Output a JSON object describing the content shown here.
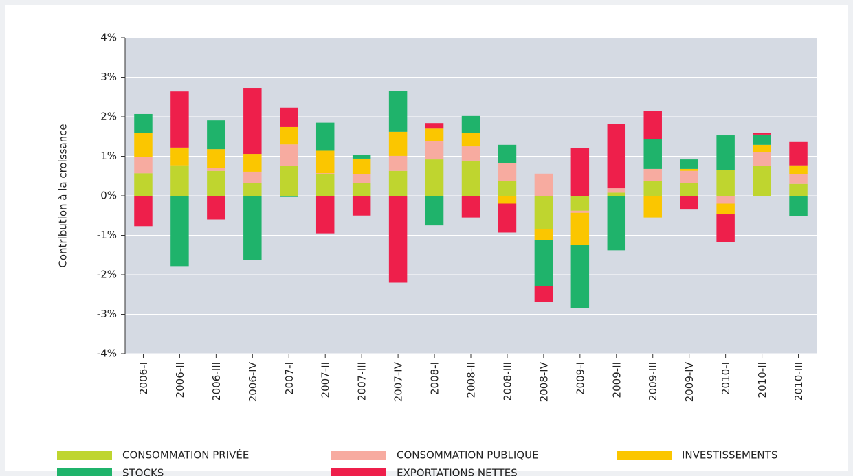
{
  "chart_data": {
    "type": "stacked_bar",
    "y_label": "Contribution à la croissance",
    "categories": [
      "2006-I",
      "2006-II",
      "2006-III",
      "2006-IV",
      "2007-I",
      "2007-II",
      "2007-III",
      "2007-IV",
      "2008-I",
      "2008-II",
      "2008-III",
      "2008-IV",
      "2009-I",
      "2009-II",
      "2009-III",
      "2009-IV",
      "2010-I",
      "2010-II",
      "2010-III"
    ],
    "series": [
      {
        "name": "CONSOMMATION PRIVÉE",
        "color": "#bfd52f",
        "values": [
          0.57,
          0.77,
          0.63,
          0.33,
          0.75,
          0.54,
          0.33,
          0.63,
          0.92,
          0.89,
          0.37,
          -0.85,
          -0.38,
          0.08,
          0.38,
          0.33,
          0.66,
          0.75,
          0.3
        ]
      },
      {
        "name": "CONSOMMATION PUBLIQUE",
        "color": "#f7aba0",
        "values": [
          0.42,
          0,
          0.07,
          0.28,
          0.55,
          0.03,
          0.21,
          0.38,
          0.47,
          0.36,
          0.45,
          0.56,
          -0.05,
          0.11,
          0.3,
          0.3,
          -0.2,
          0.35,
          0.24
        ]
      },
      {
        "name": "INVESTISSEMENTS",
        "color": "#fbc600",
        "values": [
          0.61,
          0.45,
          0.48,
          0.45,
          0.44,
          0.57,
          0.4,
          0.61,
          0.31,
          0.35,
          -0.2,
          -0.28,
          -0.82,
          0,
          -0.55,
          0.05,
          -0.27,
          0.19,
          0.23
        ]
      },
      {
        "name": "STOCKS",
        "color": "#1fb36b",
        "values": [
          0.47,
          -1.78,
          0.73,
          -1.63,
          -0.03,
          0.71,
          0.09,
          1.04,
          -0.75,
          0.42,
          0.47,
          -1.15,
          -1.6,
          -1.38,
          0.76,
          0.24,
          0.87,
          0.26,
          -0.52
        ]
      },
      {
        "name": "EXPORTATIONS NETTES",
        "color": "#ee1f4b",
        "values": [
          -0.77,
          1.42,
          -0.6,
          1.67,
          0.49,
          -0.95,
          -0.5,
          -2.2,
          0.14,
          -0.55,
          -0.73,
          -0.4,
          1.2,
          1.62,
          0.7,
          -0.35,
          -0.7,
          0.05,
          0.59
        ]
      }
    ],
    "ylim": [
      -4,
      4
    ],
    "yticks": [
      {
        "value": -4,
        "label": "-4%"
      },
      {
        "value": -3,
        "label": "-3%"
      },
      {
        "value": -2,
        "label": "-2%"
      },
      {
        "value": -1,
        "label": "-1%"
      },
      {
        "value": 0,
        "label": "0%"
      },
      {
        "value": 1,
        "label": "1%"
      },
      {
        "value": 2,
        "label": "2%"
      },
      {
        "value": 3,
        "label": "3%"
      },
      {
        "value": 4,
        "label": "4%"
      }
    ],
    "grid": true
  }
}
